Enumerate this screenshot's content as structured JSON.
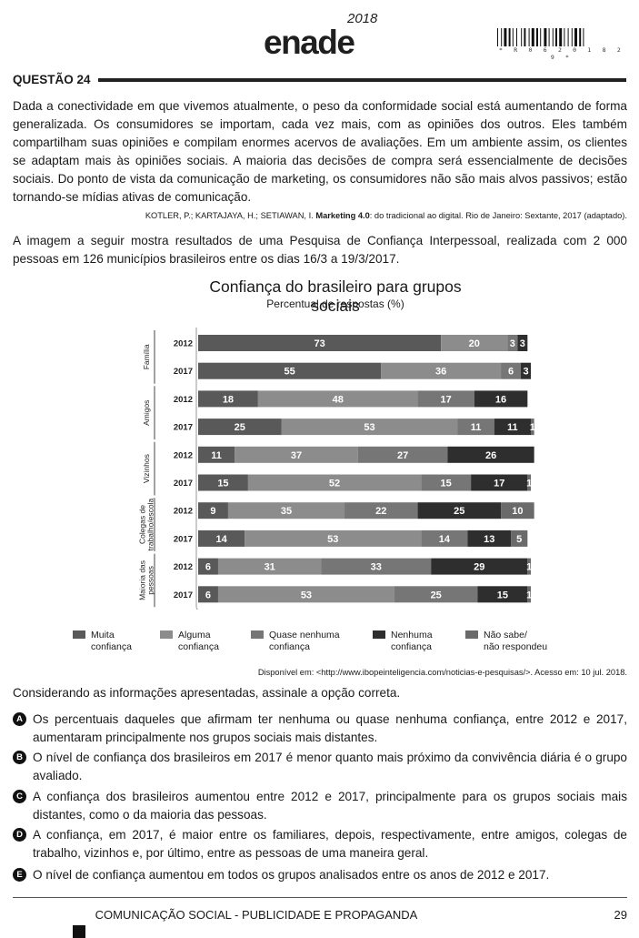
{
  "header": {
    "logo_text": "enade",
    "logo_year": "2018",
    "barcode_digits": "* R 0 6 2 0 1 8 2 9 *"
  },
  "question": {
    "title": "QUESTÃO 24",
    "text_intro": "Dada a conectividade em que vivemos atualmente, o peso da conformidade social está aumentando de forma generalizada. Os consumidores se importam, cada vez mais, com as opiniões dos outros. Eles também compartilham suas opiniões e compilam enormes acervos de avaliações. Em um ambiente assim, os clientes se adaptam mais às opiniões sociais. A maioria das decisões de compra será essencialmente de decisões sociais. Do ponto de vista da comunicação de marketing, os consumidores não são mais alvos passivos; estão tornando-se mídias ativas de comunicação.",
    "citation_authors": "KOTLER, P.; KARTAJAYA, H.; SETIAWAN, I. ",
    "citation_title": "Marketing 4.0",
    "citation_rest": ": do tradicional ao digital. Rio de Janeiro: Sextante, 2017 (adaptado).",
    "chart_intro": "A imagem a seguir mostra resultados de uma Pesquisa de Confiança Interpessoal, realizada com 2 000 pessoas em 126 municípios brasileiros entre os dias 16/3 a 19/3/2017.",
    "source": "Disponível em: <http://www.ibopeinteligencia.com/noticias-e-pesquisas/>. Acesso em: 10 jul. 2018.",
    "prompt": "Considerando as informações apresentadas, assinale a opção correta.",
    "options": [
      {
        "letter": "A",
        "text": "Os percentuais daqueles que afirmam ter nenhuma ou quase nenhuma confiança, entre 2012 e 2017, aumentaram principalmente nos grupos sociais mais distantes."
      },
      {
        "letter": "B",
        "text": "O nível de confiança dos brasileiros em 2017 é menor quanto mais próximo da convivência diária é o grupo avaliado."
      },
      {
        "letter": "C",
        "text": "A confiança dos brasileiros aumentou entre 2012 e 2017, principalmente para os grupos sociais mais distantes, como o da maioria das pessoas."
      },
      {
        "letter": "D",
        "text": "A confiança, em 2017, é maior entre os familiares, depois, respectivamente, entre amigos, colegas de trabalho, vizinhos e, por último, entre as pessoas de uma maneira geral."
      },
      {
        "letter": "E",
        "text": "O nível de confiança aumentou em todos os grupos analisados entre os anos de 2012 e 2017."
      }
    ]
  },
  "footer": {
    "course": "COMUNICAÇÃO SOCIAL - PUBLICIDADE E PROPAGANDA",
    "page": "29"
  },
  "chart_data": {
    "type": "bar",
    "orientation": "horizontal-stacked",
    "title": "Confiança do brasileiro para grupos sociais",
    "subtitle": "Percentual de respostas (%)",
    "xlim": [
      0,
      100
    ],
    "legend_position": "bottom",
    "groups": [
      {
        "name": "Família",
        "label_lines": [
          "Família"
        ],
        "rows": [
          {
            "year": "2012",
            "values": [
              73,
              20,
              3,
              3,
              null
            ]
          },
          {
            "year": "2017",
            "values": [
              55,
              36,
              6,
              3,
              null
            ]
          }
        ]
      },
      {
        "name": "Amigos",
        "label_lines": [
          "Amigos"
        ],
        "rows": [
          {
            "year": "2012",
            "values": [
              18,
              48,
              17,
              16,
              null
            ]
          },
          {
            "year": "2017",
            "values": [
              25,
              53,
              11,
              11,
              1
            ]
          }
        ]
      },
      {
        "name": "Vizinhos",
        "label_lines": [
          "Vizinhos"
        ],
        "rows": [
          {
            "year": "2012",
            "values": [
              11,
              37,
              27,
              26,
              null
            ]
          },
          {
            "year": "2017",
            "values": [
              15,
              52,
              15,
              17,
              1
            ]
          }
        ]
      },
      {
        "name": "Colegas de trabalho/escola",
        "label_lines": [
          "Colegas de",
          "trabalho/escola"
        ],
        "rows": [
          {
            "year": "2012",
            "values": [
              9,
              35,
              22,
              25,
              10
            ]
          },
          {
            "year": "2017",
            "values": [
              14,
              53,
              14,
              13,
              5
            ]
          }
        ]
      },
      {
        "name": "Maioria das pessoas",
        "label_lines": [
          "Maioria das",
          "pessoas"
        ],
        "rows": [
          {
            "year": "2012",
            "values": [
              6,
              31,
              33,
              29,
              1
            ]
          },
          {
            "year": "2017",
            "values": [
              6,
              53,
              25,
              15,
              1
            ]
          }
        ]
      }
    ],
    "series": [
      {
        "name": "Muita confiança",
        "label_lines": [
          "Muita",
          "confiança"
        ],
        "color": "#595959"
      },
      {
        "name": "Alguma confiança",
        "label_lines": [
          "Alguma",
          "confiança"
        ],
        "color": "#8c8c8c"
      },
      {
        "name": "Quase nenhuma confiança",
        "label_lines": [
          "Quase nenhuma",
          "confiança"
        ],
        "color": "#767676"
      },
      {
        "name": "Nenhuma confiança",
        "label_lines": [
          "Nenhuma",
          "confiança"
        ],
        "color": "#2e2e2e"
      },
      {
        "name": "Não sabe/não respondeu",
        "label_lines": [
          "Não sabe/",
          "não respondeu"
        ],
        "color": "#6a6a6a"
      }
    ]
  }
}
